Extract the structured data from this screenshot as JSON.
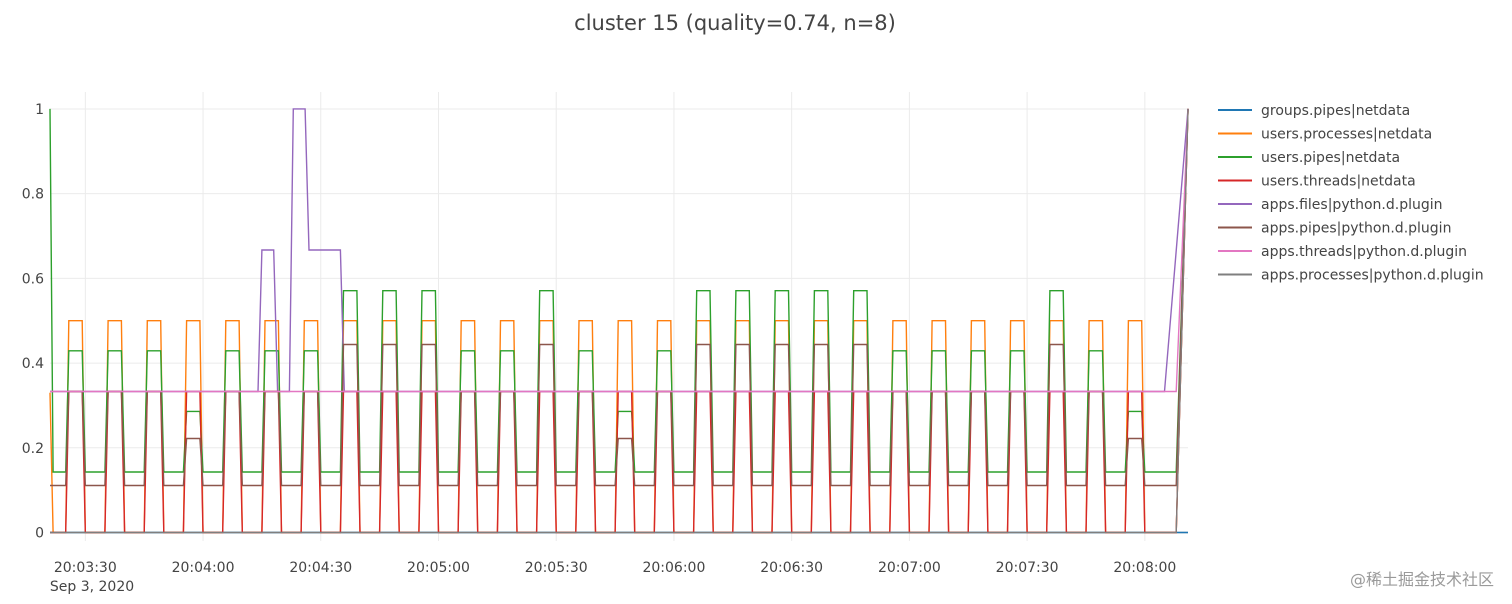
{
  "chart_data": {
    "type": "line",
    "title": "cluster 15 (quality=0.74, n=8)",
    "xlabel": "",
    "ylabel": "",
    "grid": true,
    "legend_position": "right",
    "x_date_label": "Sep 3, 2020",
    "x_ticks": [
      "20:03:30",
      "20:04:00",
      "20:04:30",
      "20:05:00",
      "20:05:30",
      "20:06:00",
      "20:06:30",
      "20:07:00",
      "20:07:30",
      "20:08:00"
    ],
    "y_ticks": [
      "0",
      "0.2",
      "0.4",
      "0.6",
      "0.8",
      "1"
    ],
    "xlim": [
      "20:03:21",
      "20:08:11"
    ],
    "ylim": [
      -0.02,
      1.04
    ],
    "cycle_starts": [
      "20:03:25",
      "20:03:35",
      "20:03:45",
      "20:03:55",
      "20:04:05",
      "20:04:15",
      "20:04:25",
      "20:04:35",
      "20:04:45",
      "20:04:55",
      "20:05:05",
      "20:05:15",
      "20:05:25",
      "20:05:35",
      "20:05:45",
      "20:05:55",
      "20:06:05",
      "20:06:15",
      "20:06:25",
      "20:06:35",
      "20:06:45",
      "20:06:55",
      "20:07:05",
      "20:07:15",
      "20:07:25",
      "20:07:35",
      "20:07:45",
      "20:07:55"
    ],
    "series": [
      {
        "name": "groups.pipes|netdata",
        "color": "#1f77b4",
        "base": 0,
        "peaks": [
          0,
          0,
          0,
          0,
          0,
          0,
          0,
          0,
          0,
          0,
          0,
          0,
          0,
          0,
          0,
          0,
          0,
          0,
          0,
          0,
          0,
          0,
          0,
          0,
          0,
          0,
          0,
          0
        ],
        "start": 0,
        "end": 0
      },
      {
        "name": "users.processes|netdata",
        "color": "#ff7f0e",
        "base": 0,
        "peaks": [
          0.5,
          0.5,
          0.5,
          0.5,
          0.5,
          0.5,
          0.5,
          0.5,
          0.5,
          0.5,
          0.5,
          0.5,
          0.5,
          0.5,
          0.5,
          0.5,
          0.5,
          0.5,
          0.5,
          0.5,
          0.5,
          0.5,
          0.5,
          0.5,
          0.5,
          0.5,
          0.5,
          0.5
        ],
        "start": 0.33,
        "end": 1
      },
      {
        "name": "users.pipes|netdata",
        "color": "#2ca02c",
        "base": 0.143,
        "peaks": [
          0.429,
          0.429,
          0.429,
          0.286,
          0.429,
          0.429,
          0.429,
          0.571,
          0.571,
          0.571,
          0.429,
          0.429,
          0.571,
          0.429,
          0.286,
          0.429,
          0.571,
          0.571,
          0.571,
          0.571,
          0.571,
          0.429,
          0.429,
          0.429,
          0.429,
          0.571,
          0.429,
          0.286
        ],
        "start": 1,
        "end": 1
      },
      {
        "name": "users.threads|netdata",
        "color": "#d62728",
        "base": 0,
        "peaks": [
          0.333,
          0.333,
          0.333,
          0.333,
          0.333,
          0.333,
          0.333,
          0.333,
          0.333,
          0.333,
          0.333,
          0.333,
          0.333,
          0.333,
          0.333,
          0.333,
          0.333,
          0.333,
          0.333,
          0.333,
          0.333,
          0.333,
          0.333,
          0.333,
          0.333,
          0.333,
          0.333,
          0.333
        ],
        "start": 0,
        "end": 1
      },
      {
        "name": "apps.files|python.d.plugin",
        "color": "#9467bd",
        "base": 0.333,
        "peaks": [
          0.333,
          0.333,
          0.333,
          0.333,
          0.333,
          0.333,
          0.333,
          0.333,
          0.333,
          0.333,
          0.333,
          0.333,
          0.333,
          0.333,
          0.333,
          0.333,
          0.333,
          0.333,
          0.333,
          0.333,
          0.333,
          0.333,
          0.333,
          0.333,
          0.333,
          0.333,
          0.333,
          0.333
        ],
        "start": 0.333,
        "end": 1
      },
      {
        "name": "apps.pipes|python.d.plugin",
        "color": "#8c564b",
        "base": 0.111,
        "peaks": [
          0.333,
          0.333,
          0.333,
          0.222,
          0.333,
          0.333,
          0.333,
          0.444,
          0.444,
          0.444,
          0.333,
          0.333,
          0.444,
          0.333,
          0.222,
          0.333,
          0.444,
          0.444,
          0.444,
          0.444,
          0.444,
          0.333,
          0.333,
          0.333,
          0.333,
          0.444,
          0.333,
          0.222
        ],
        "start": 0.111,
        "end": 1
      },
      {
        "name": "apps.threads|python.d.plugin",
        "color": "#e377c2",
        "base": 0.333,
        "peaks": [
          0.333,
          0.333,
          0.333,
          0.333,
          0.333,
          0.333,
          0.333,
          0.333,
          0.333,
          0.333,
          0.333,
          0.333,
          0.333,
          0.333,
          0.333,
          0.333,
          0.333,
          0.333,
          0.333,
          0.333,
          0.333,
          0.333,
          0.333,
          0.333,
          0.333,
          0.333,
          0.333,
          0.333
        ],
        "start": 0.333,
        "end": 1
      },
      {
        "name": "apps.processes|python.d.plugin",
        "color": "#7f7f7f",
        "base": 0,
        "peaks": [
          0,
          0,
          0,
          0,
          0,
          0,
          0,
          0,
          0,
          0,
          0,
          0,
          0,
          0,
          0,
          0,
          0,
          0,
          0,
          0,
          0,
          0,
          0,
          0,
          0,
          0,
          0,
          0
        ],
        "start": 0,
        "end": 1
      }
    ],
    "apps_files_points": [
      [
        "20:03:21",
        0.333
      ],
      [
        "20:04:14",
        0.333
      ],
      [
        "20:04:15",
        0.667
      ],
      [
        "20:04:18",
        0.667
      ],
      [
        "20:04:19",
        0.333
      ],
      [
        "20:04:22",
        0.333
      ],
      [
        "20:04:23",
        1
      ],
      [
        "20:04:26",
        1
      ],
      [
        "20:04:27",
        0.667
      ],
      [
        "20:04:35",
        0.667
      ],
      [
        "20:04:36",
        0.333
      ],
      [
        "20:08:05",
        0.333
      ],
      [
        "20:08:11",
        1
      ]
    ]
  },
  "watermark": "@稀土掘金技术社区"
}
